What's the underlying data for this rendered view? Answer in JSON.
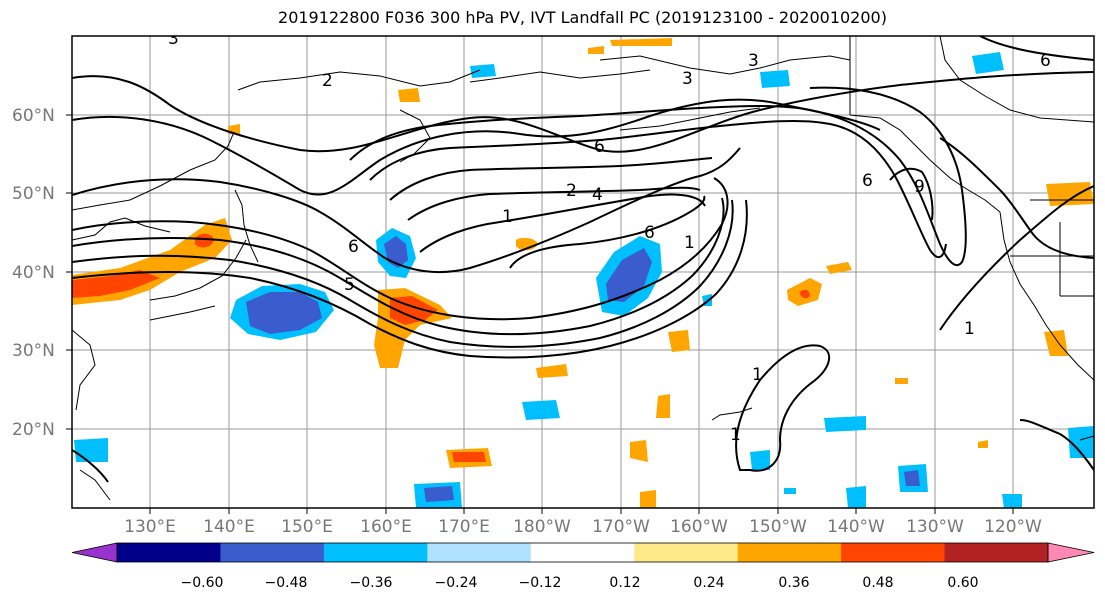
{
  "title": "2019122800 F036 300 hPa PV, IVT Landfall PC (2019123100 - 2020010200)",
  "latitude_labels": [
    "60°N",
    "50°N",
    "40°N",
    "30°N",
    "20°N"
  ],
  "longitude_labels": [
    "130°E",
    "140°E",
    "150°E",
    "160°E",
    "170°E",
    "180°W",
    "170°W",
    "160°W",
    "150°W",
    "140°W",
    "130°W",
    "120°W"
  ],
  "contour_labels": [
    "2",
    "3",
    "3",
    "6",
    "1",
    "6",
    "5",
    "2",
    "1",
    "6",
    "6",
    "1",
    "1",
    "1",
    "6",
    "3",
    "4",
    "9"
  ],
  "colorbar": {
    "colors": [
      "#9932cc",
      "#00008b",
      "#3a5ccc",
      "#00bfff",
      "#b0e2ff",
      "#ffffff",
      "#ffe989",
      "#ffa500",
      "#ff4500",
      "#b22222",
      "#ff88b4"
    ],
    "tick_labels": [
      "−0.60",
      "−0.48",
      "−0.36",
      "−0.24",
      "−0.12",
      "0.12",
      "0.24",
      "0.36",
      "0.48",
      "0.60"
    ]
  },
  "colors": {
    "contour": "#000000",
    "grid": "#999999",
    "coast": "#000000"
  }
}
